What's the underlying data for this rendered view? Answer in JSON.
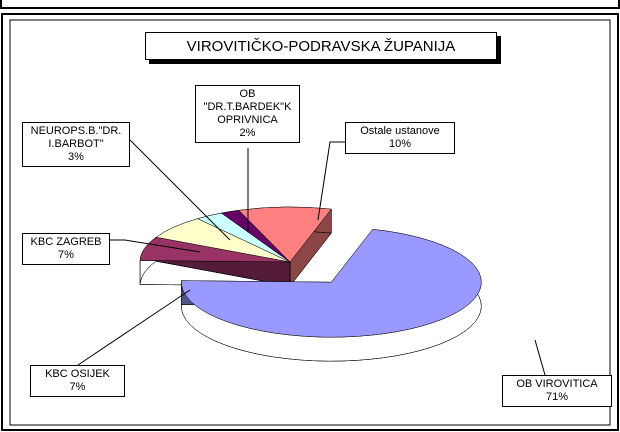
{
  "chart_data": {
    "type": "pie",
    "title": "VIROVITIČKO-PODRAVSKA ŽUPANIJA",
    "categories": [
      "Ostale ustanove",
      "OB VIROVITICA",
      "KBC OSIJEK",
      "KBC ZAGREB",
      "NEUROPS.B.\"DR. I.BARBOT\"",
      "OB \"DR.T.BARDEK\"K OPRIVNICA"
    ],
    "values": [
      10,
      71,
      7,
      7,
      3,
      2
    ],
    "value_labels": [
      "10%",
      "71%",
      "7%",
      "7%",
      "3%",
      "2%"
    ],
    "colors": [
      "#ff8080",
      "#9999ff",
      "#993366",
      "#ffffcc",
      "#ccffff",
      "#660066"
    ]
  }
}
